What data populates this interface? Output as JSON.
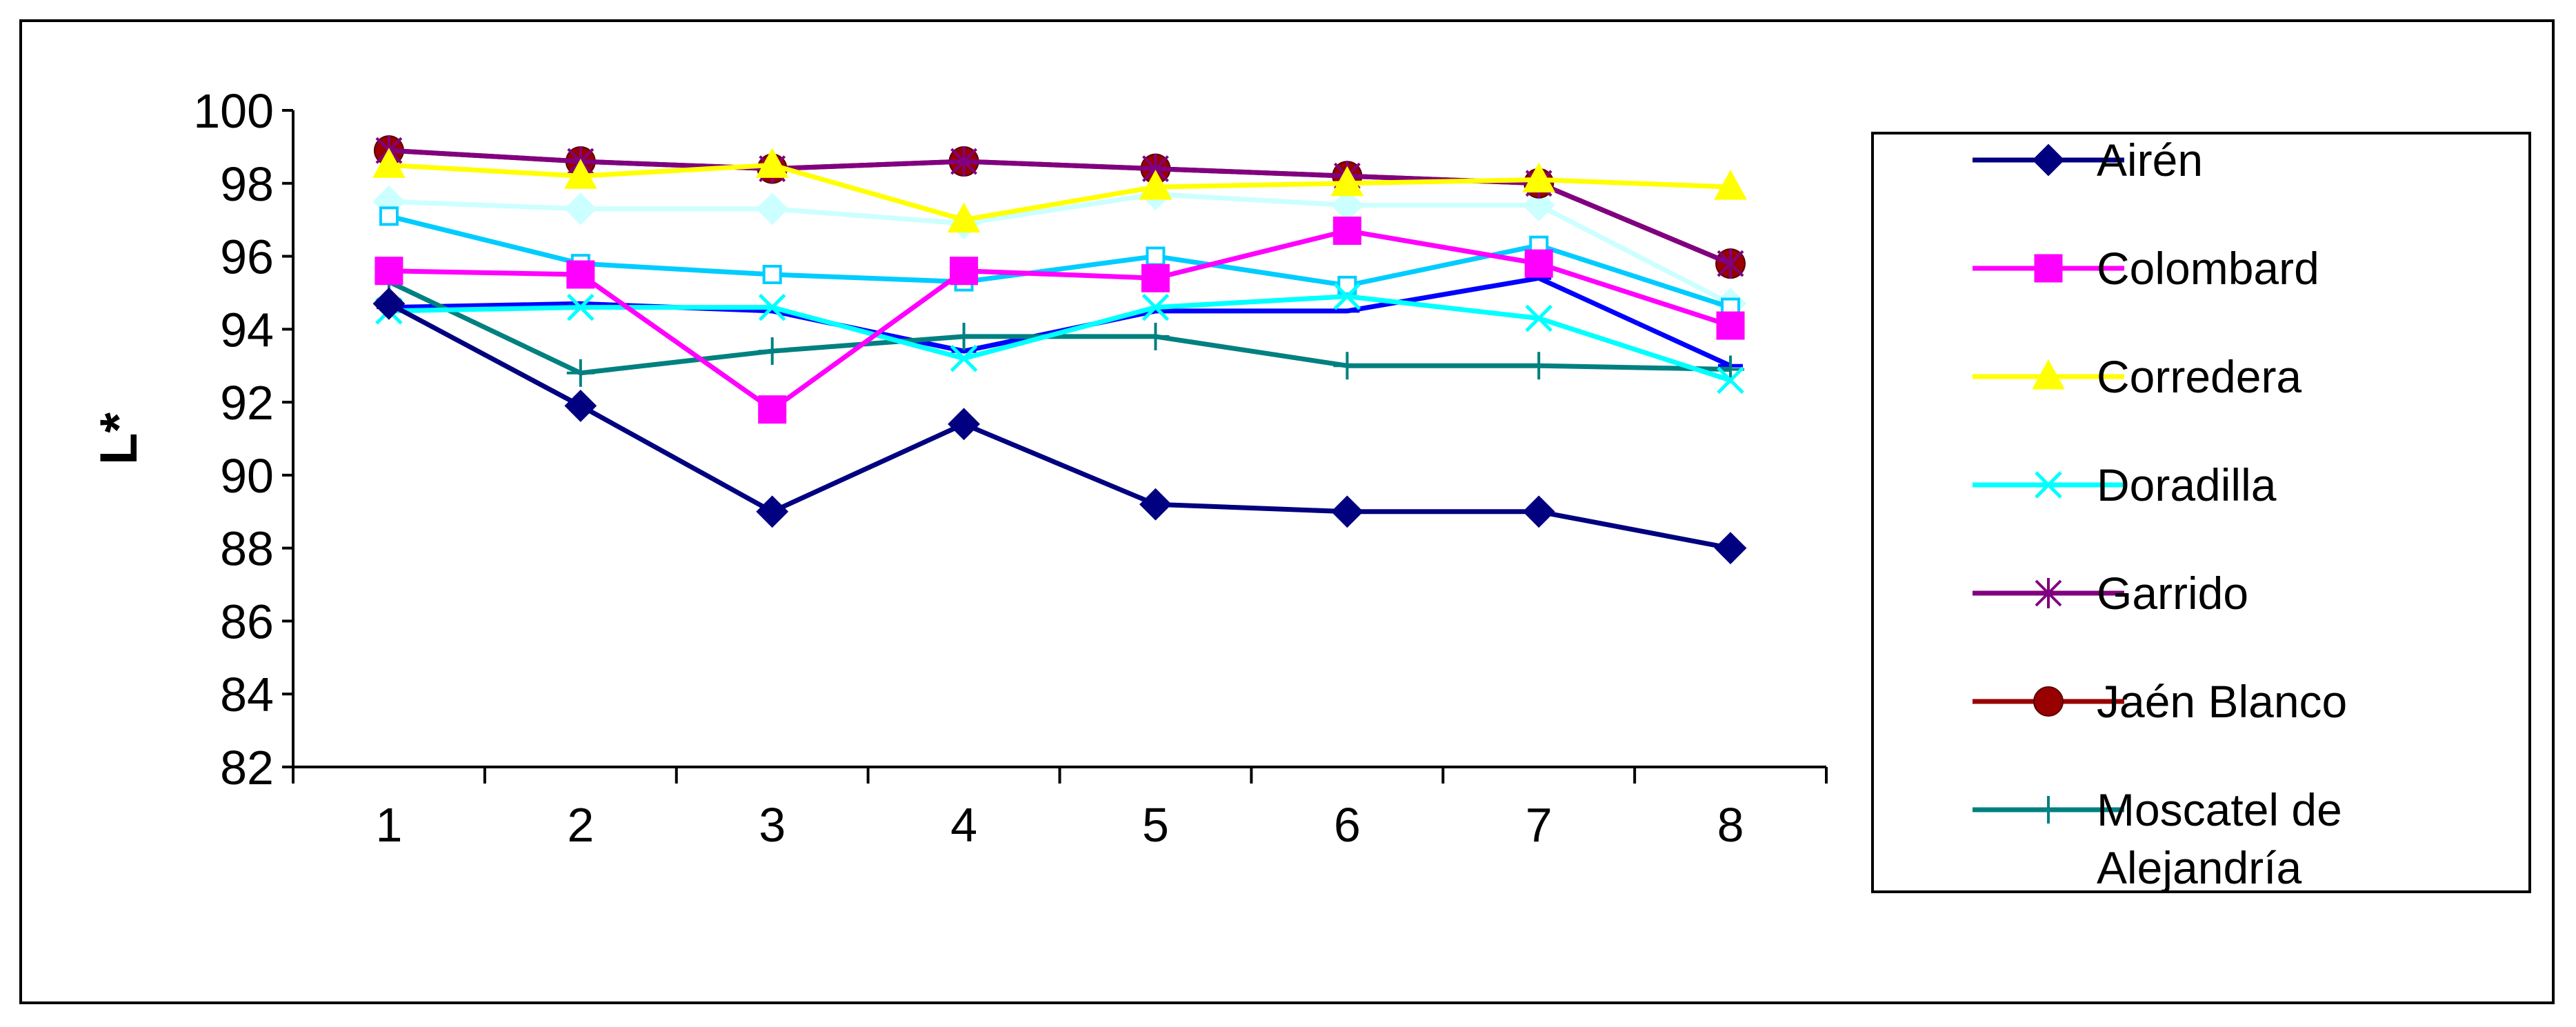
{
  "chart_data": {
    "type": "line",
    "title": "",
    "xlabel": "",
    "ylabel": "L*",
    "categories": [
      "1",
      "2",
      "3",
      "4",
      "5",
      "6",
      "7",
      "8"
    ],
    "yticks": [
      "82",
      "84",
      "86",
      "88",
      "90",
      "92",
      "94",
      "96",
      "98",
      "100"
    ],
    "ylim": [
      82,
      100
    ],
    "grid": false,
    "legend_position": "right",
    "series": [
      {
        "name": "Airén",
        "color": "#000080",
        "marker": "diamond",
        "values": [
          94.7,
          91.9,
          89.0,
          91.4,
          89.2,
          89.0,
          89.0,
          88.0
        ]
      },
      {
        "name": "Colombard",
        "color": "#FF00FF",
        "marker": "square",
        "values": [
          95.6,
          95.5,
          91.8,
          95.6,
          95.4,
          96.7,
          95.8,
          94.1
        ]
      },
      {
        "name": "Corredera",
        "color": "#FFFF00",
        "marker": "triangle",
        "values": [
          98.5,
          98.2,
          98.5,
          97.0,
          97.9,
          98.0,
          98.1,
          97.9
        ]
      },
      {
        "name": "Doradilla",
        "color": "#00FFFF",
        "marker": "x",
        "values": [
          94.5,
          94.6,
          94.6,
          93.2,
          94.6,
          94.9,
          94.3,
          92.6
        ]
      },
      {
        "name": "Garrido",
        "color": "#800080",
        "marker": "star",
        "values": [
          98.9,
          98.6,
          98.4,
          98.6,
          98.4,
          98.2,
          98.0,
          95.8
        ]
      },
      {
        "name": "Jaén Blanco",
        "color": "#990000",
        "marker": "circle",
        "values": [
          98.9,
          98.6,
          98.4,
          98.6,
          98.4,
          98.2,
          98.0,
          95.8
        ]
      },
      {
        "name": "Moscatel de Alejandría",
        "legend_lines": [
          "Moscatel de",
          "Alejandría"
        ],
        "color": "#008080",
        "marker": "plus",
        "values": [
          95.3,
          92.8,
          93.4,
          93.8,
          93.8,
          93.0,
          93.0,
          92.9
        ]
      },
      {
        "name": "",
        "color": "#0000FF",
        "marker": "dash",
        "values": [
          94.6,
          94.7,
          94.5,
          93.4,
          94.5,
          94.5,
          95.4,
          93.0
        ]
      },
      {
        "name": "",
        "color": "#00CCFF",
        "marker": "square-outline",
        "values": [
          97.1,
          95.8,
          95.5,
          95.3,
          96.0,
          95.2,
          96.3,
          94.6
        ]
      },
      {
        "name": "",
        "color": "#CCFFFF",
        "marker": "diamond",
        "values": [
          97.5,
          97.3,
          97.3,
          96.9,
          97.7,
          97.4,
          97.4,
          94.7
        ]
      }
    ]
  }
}
